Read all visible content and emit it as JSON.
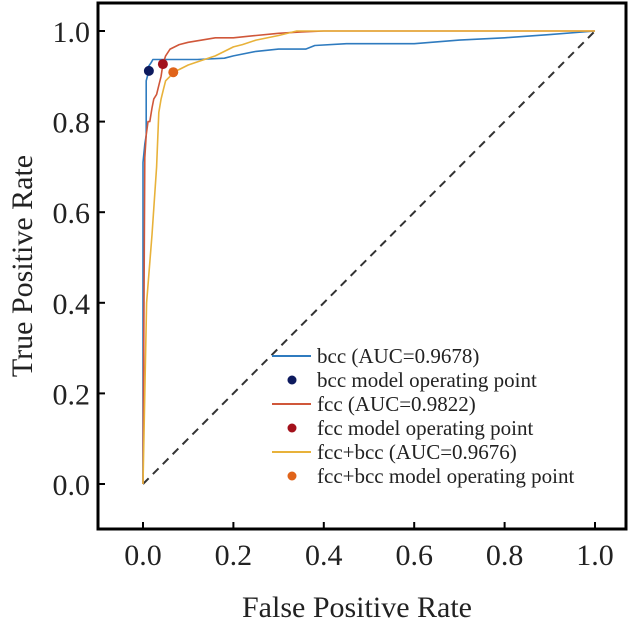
{
  "chart_data": {
    "type": "line",
    "title": "",
    "xlabel": "False Positive Rate",
    "ylabel": "True Positive Rate",
    "xlim": [
      -0.1,
      1.07
    ],
    "ylim": [
      -0.1,
      1.06
    ],
    "xticks": [
      0.0,
      0.2,
      0.4,
      0.6,
      0.8,
      1.0
    ],
    "yticks": [
      0.0,
      0.2,
      0.4,
      0.6,
      0.8,
      1.0
    ],
    "xtick_labels": [
      "0.0",
      "0.2",
      "0.4",
      "0.6",
      "0.8",
      "1.0"
    ],
    "ytick_labels": [
      "0.0",
      "0.2",
      "0.4",
      "0.6",
      "0.8",
      "1.0"
    ],
    "grid": false,
    "legend_position": "bottom-right",
    "series": [
      {
        "name": "bcc (AUC=0.9678)",
        "kind": "line",
        "color": "#2f7bbf",
        "x": [
          0.0,
          0.0,
          0.004,
          0.007,
          0.007,
          0.011,
          0.011,
          0.018,
          0.022,
          0.08,
          0.12,
          0.18,
          0.2,
          0.25,
          0.3,
          0.36,
          0.38,
          0.45,
          0.6,
          0.7,
          0.8,
          0.9,
          1.0
        ],
        "y": [
          0.0,
          0.71,
          0.75,
          0.77,
          0.89,
          0.905,
          0.92,
          0.93,
          0.937,
          0.937,
          0.937,
          0.94,
          0.945,
          0.955,
          0.96,
          0.96,
          0.968,
          0.972,
          0.972,
          0.98,
          0.985,
          0.992,
          1.0
        ]
      },
      {
        "name": "bcc model operating point",
        "kind": "point",
        "color": "#0d1a5e",
        "x": [
          0.013
        ],
        "y": [
          0.912
        ]
      },
      {
        "name": "fcc (AUC=0.9822)",
        "kind": "line",
        "color": "#d0573a",
        "x": [
          0.0,
          0.004,
          0.007,
          0.011,
          0.015,
          0.02,
          0.024,
          0.03,
          0.035,
          0.04,
          0.044,
          0.05,
          0.06,
          0.08,
          0.1,
          0.13,
          0.16,
          0.2,
          0.25,
          0.3,
          0.35,
          0.4,
          0.6,
          0.8,
          1.0
        ],
        "y": [
          0.0,
          0.72,
          0.77,
          0.8,
          0.8,
          0.83,
          0.85,
          0.86,
          0.88,
          0.9,
          0.927,
          0.945,
          0.96,
          0.97,
          0.975,
          0.98,
          0.985,
          0.985,
          0.99,
          0.995,
          0.998,
          1.0,
          1.0,
          1.0,
          1.0
        ]
      },
      {
        "name": "fcc model operating point",
        "kind": "point",
        "color": "#a3111b",
        "x": [
          0.044
        ],
        "y": [
          0.927
        ]
      },
      {
        "name": "fcc+bcc (AUC=0.9676)",
        "kind": "line",
        "color": "#e8b23a",
        "x": [
          0.0,
          0.008,
          0.02,
          0.03,
          0.035,
          0.04,
          0.045,
          0.05,
          0.06,
          0.067,
          0.08,
          0.1,
          0.13,
          0.16,
          0.18,
          0.2,
          0.22,
          0.25,
          0.3,
          0.34,
          0.4,
          0.6,
          0.8,
          1.0
        ],
        "y": [
          0.0,
          0.4,
          0.55,
          0.7,
          0.82,
          0.85,
          0.87,
          0.89,
          0.9,
          0.909,
          0.915,
          0.925,
          0.935,
          0.945,
          0.955,
          0.965,
          0.97,
          0.98,
          0.99,
          1.0,
          1.0,
          1.0,
          1.0,
          1.0
        ]
      },
      {
        "name": "fcc+bcc model operating point",
        "kind": "point",
        "color": "#e0641a",
        "x": [
          0.067
        ],
        "y": [
          0.909
        ]
      },
      {
        "name": "chance",
        "kind": "dashed-line",
        "color": "#333333",
        "x": [
          0.0,
          1.0
        ],
        "y": [
          0.0,
          1.0
        ],
        "in_legend": false
      }
    ]
  }
}
